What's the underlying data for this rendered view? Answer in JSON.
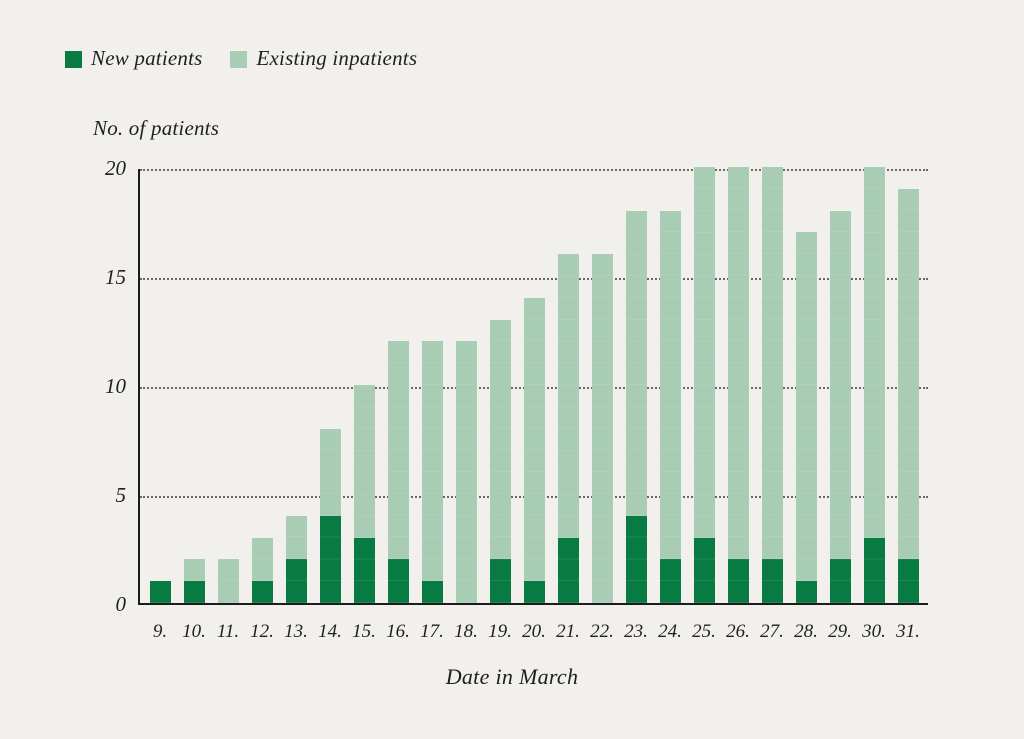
{
  "chart_data": {
    "type": "bar",
    "stacked": true,
    "ylabel_title": "No. of patients",
    "xlabel": "Date in March",
    "categories": [
      "9.",
      "10.",
      "11.",
      "12.",
      "13.",
      "14.",
      "15.",
      "16.",
      "17.",
      "18.",
      "19.",
      "20.",
      "21.",
      "22.",
      "23.",
      "24.",
      "25.",
      "26.",
      "27.",
      "28.",
      "29.",
      "30.",
      "31."
    ],
    "series": [
      {
        "name": "New patients",
        "color": "#087b43",
        "values": [
          1,
          1,
          0,
          1,
          2,
          4,
          3,
          2,
          1,
          0,
          2,
          1,
          3,
          0,
          4,
          2,
          3,
          2,
          2,
          1,
          2,
          3,
          2
        ]
      },
      {
        "name": "Existing inpatients",
        "color": "#a9ccb5",
        "values": [
          0,
          1,
          2,
          2,
          2,
          4,
          7,
          10,
          11,
          12,
          11,
          13,
          13,
          16,
          14,
          16,
          17,
          18,
          18,
          16,
          16,
          17,
          17
        ]
      }
    ],
    "totals": [
      1,
      2,
      2,
      3,
      4,
      8,
      10,
      12,
      12,
      12,
      13,
      14,
      16,
      16,
      18,
      18,
      20,
      20,
      20,
      17,
      18,
      20,
      19
    ],
    "y_ticks": [
      0,
      5,
      10,
      15,
      20
    ],
    "ylim": [
      0,
      20
    ],
    "grid": "horizontal-dotted",
    "legend_position": "top-left"
  },
  "colors": {
    "background": "#f2f0ec",
    "axis": "#1c1c1c",
    "gridline": "#3c3c3c",
    "text": "#1f1f1f",
    "series_dark_green": "#087b43",
    "series_light_green": "#a9ccb5"
  }
}
